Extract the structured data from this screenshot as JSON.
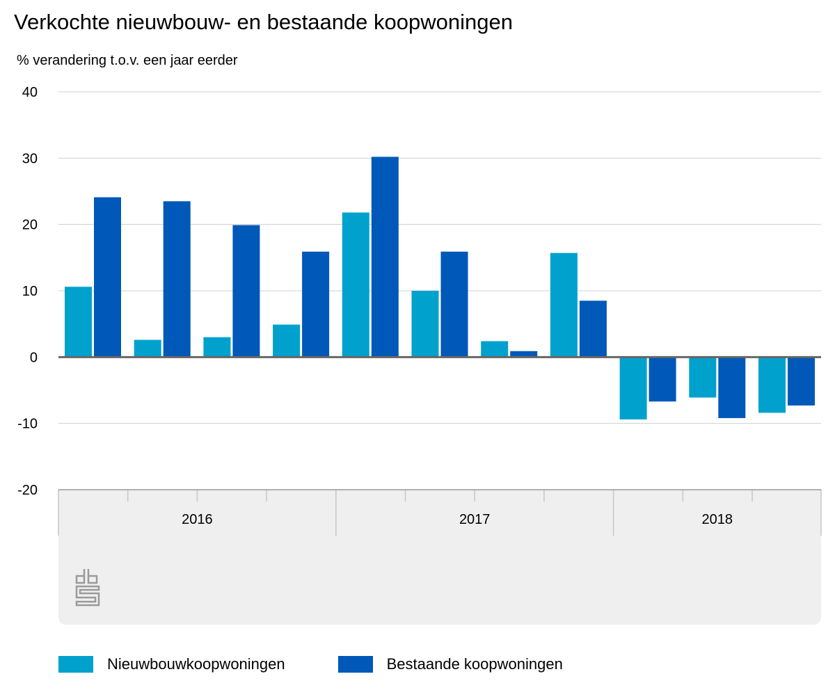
{
  "title": "Verkochte nieuwbouw- en bestaande koopwoningen",
  "subtitle": "% verandering t.o.v. een jaar eerder",
  "chart_data": {
    "type": "bar",
    "title": "Verkochte nieuwbouw- en bestaande koopwoningen",
    "ylabel": "% verandering t.o.v. een jaar eerder",
    "ylim": [
      -20,
      40
    ],
    "yticks": [
      40,
      30,
      20,
      10,
      0,
      -10,
      -20
    ],
    "grid": true,
    "legend": "bottom",
    "year_groups": [
      {
        "label": "2016",
        "quarters": 4
      },
      {
        "label": "2017",
        "quarters": 4
      },
      {
        "label": "2018",
        "quarters": 3
      }
    ],
    "series": [
      {
        "name": "Nieuwbouwkoopwoningen",
        "color": "#00a1cd",
        "values": [
          10.6,
          2.6,
          3.0,
          4.9,
          21.8,
          10.0,
          2.4,
          15.7,
          -9.4,
          -6.1,
          -8.4
        ]
      },
      {
        "name": "Bestaande koopwoningen",
        "color": "#0058b8",
        "values": [
          24.1,
          23.5,
          19.9,
          15.9,
          30.2,
          15.9,
          0.9,
          8.5,
          -6.7,
          -9.2,
          -7.3
        ]
      }
    ]
  }
}
